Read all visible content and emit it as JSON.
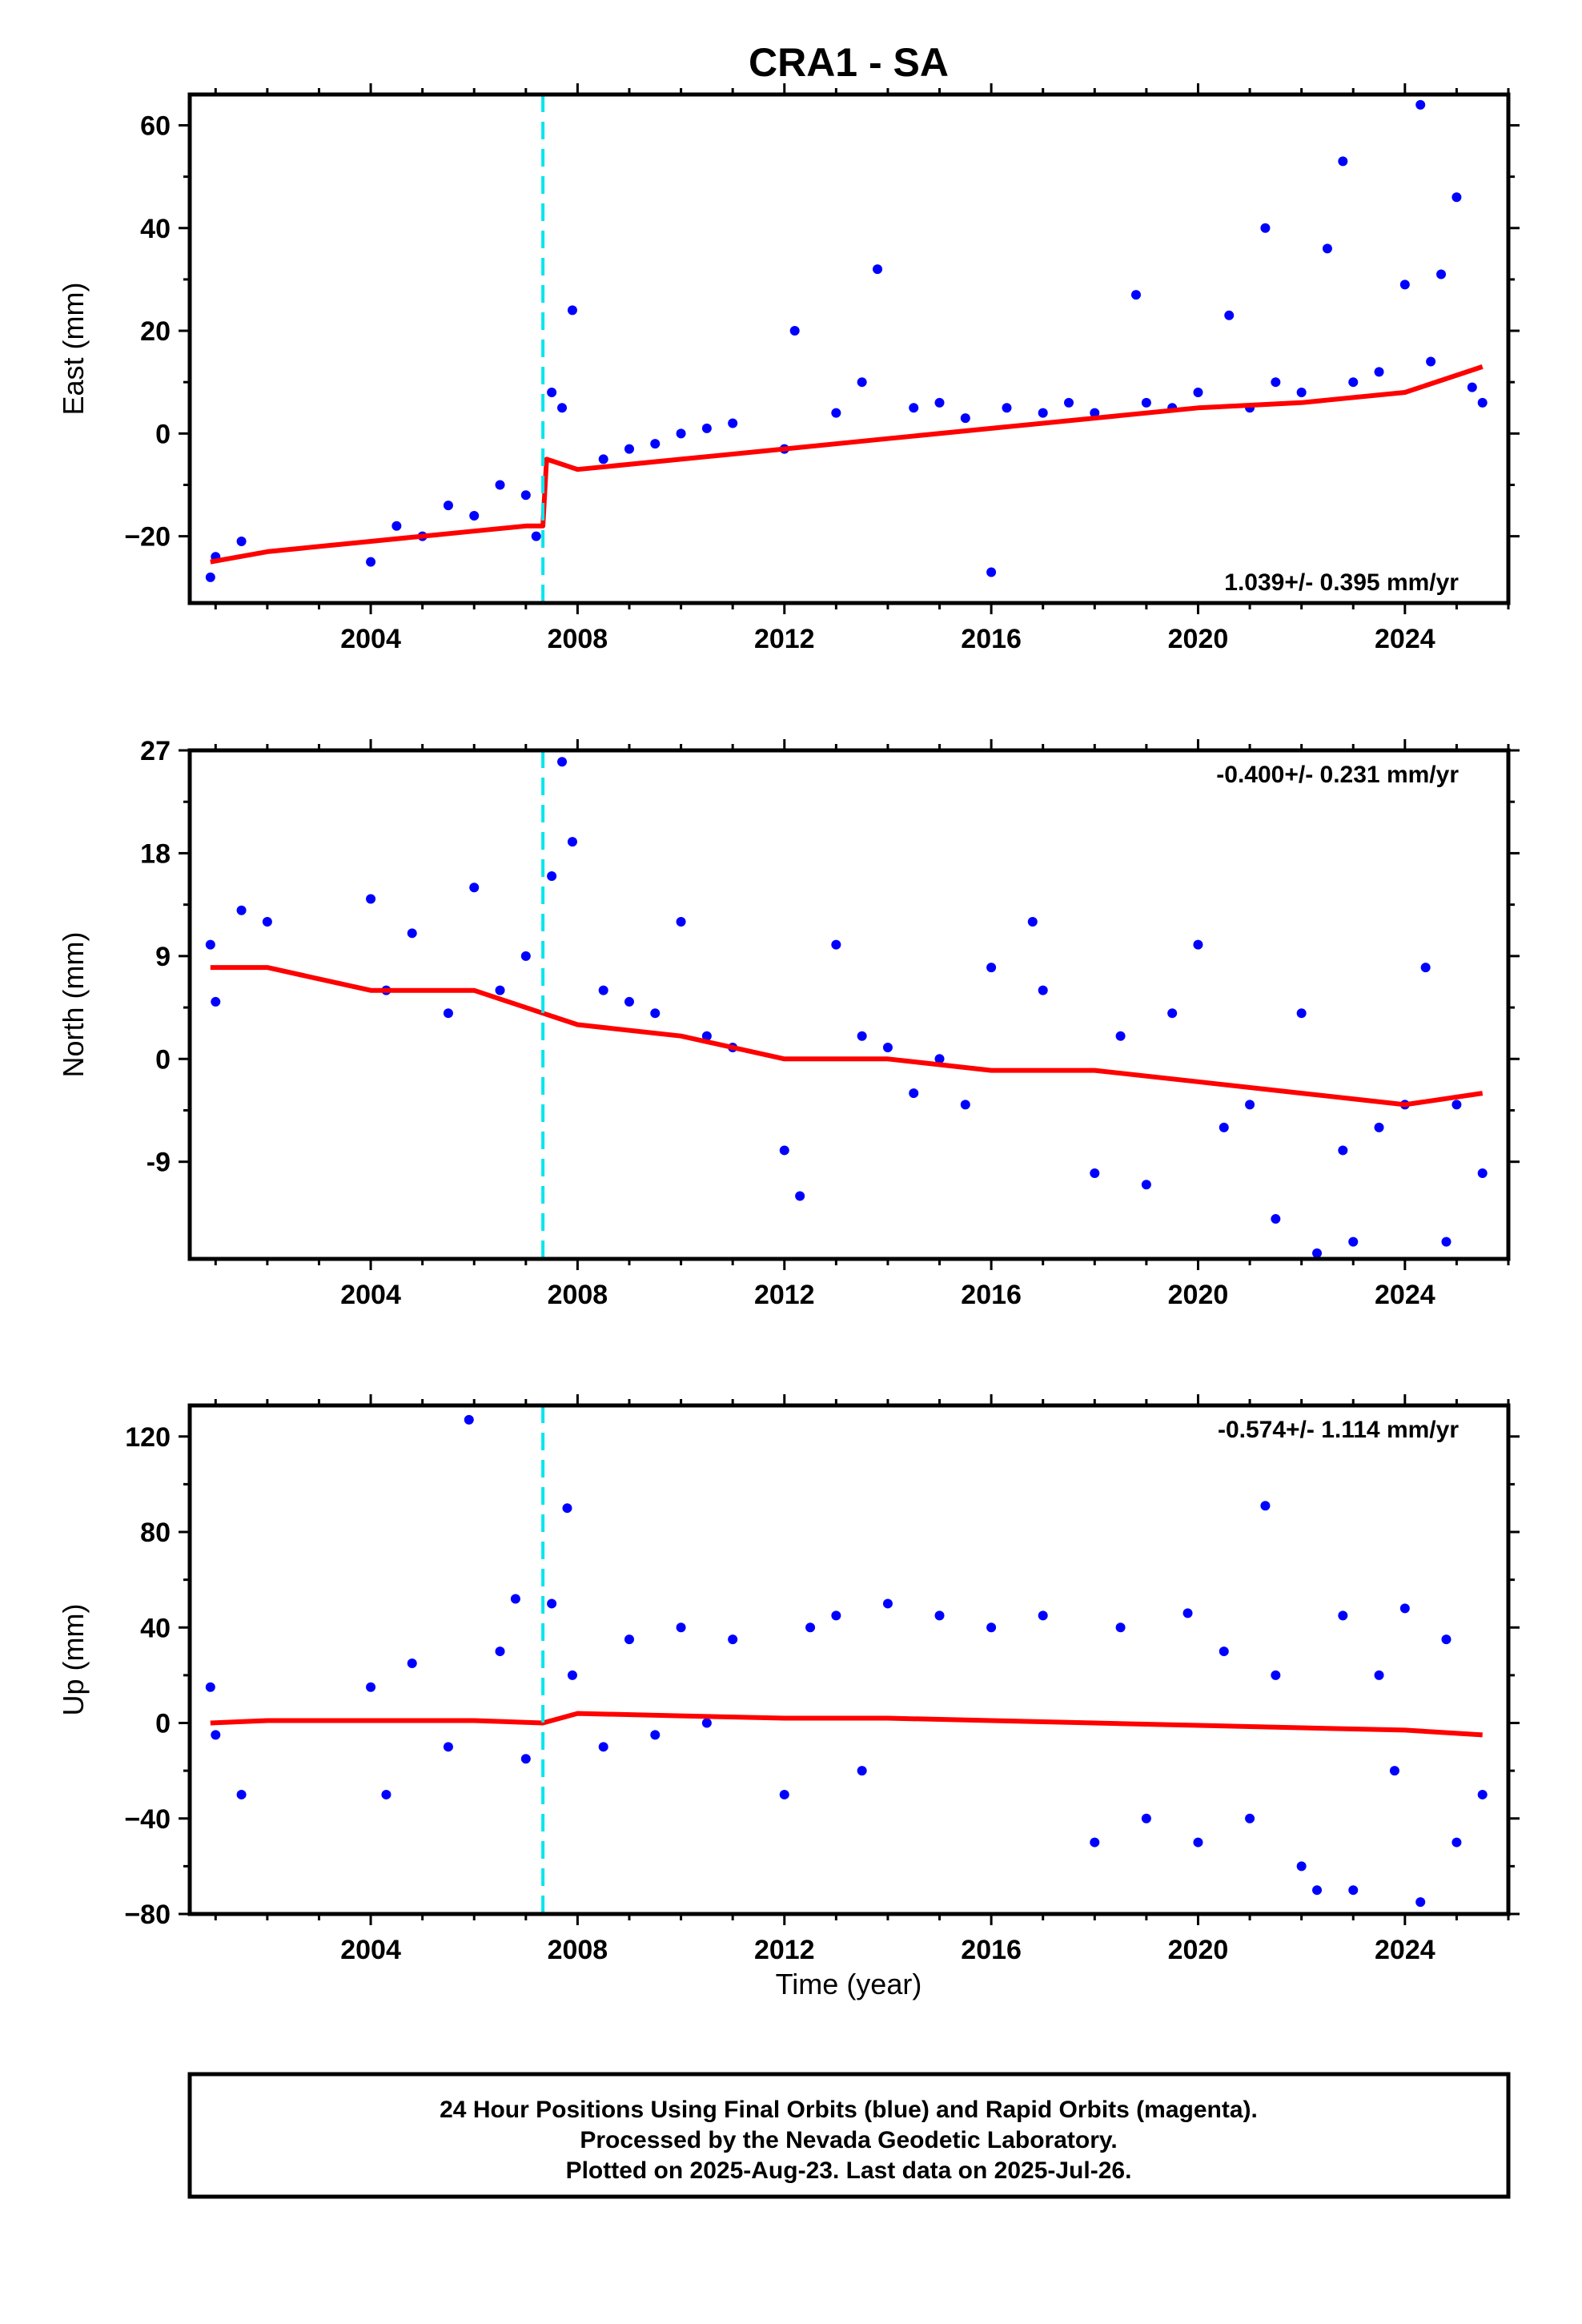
{
  "title": "CRA1 - SA",
  "x_axis_label": "Time (year)",
  "caption": [
    "24 Hour Positions Using Final Orbits (blue) and Rapid Orbits (magenta).",
    "Processed by the Nevada Geodetic Laboratory.",
    "Plotted on 2025-Aug-23. Last data on 2025-Jul-26."
  ],
  "colors": {
    "final_orbits": "#0000ff",
    "model": "#ff0000",
    "offset_line": "#00e5ee",
    "frame": "#000000"
  },
  "chart_data": [
    {
      "type": "scatter",
      "component": "east",
      "ylabel": "East (mm)",
      "xlim": [
        2000.5,
        2026.0
      ],
      "ylim": [
        -33,
        66
      ],
      "xticks": [
        2004,
        2008,
        2012,
        2016,
        2020,
        2024
      ],
      "yticks": [
        -20,
        0,
        20,
        40,
        60
      ],
      "yticklabels": [
        "−20",
        "0",
        "20",
        "40",
        "60"
      ],
      "rate_label": "1.039+/- 0.395 mm/yr",
      "offset_epoch": 2007.33,
      "series": [
        {
          "kind": "points",
          "x": [
            2000.9,
            2001.0,
            2001.5,
            2004.0,
            2004.5,
            2005.0,
            2005.5,
            2006.0,
            2006.5,
            2007.0,
            2007.2,
            2007.5,
            2007.7,
            2007.9,
            2008.5,
            2009.0,
            2009.5,
            2010.0,
            2010.5,
            2011.0,
            2012.0,
            2012.2,
            2013.0,
            2013.5,
            2013.8,
            2014.5,
            2015.0,
            2015.5,
            2016.0,
            2016.3,
            2017.0,
            2017.5,
            2018.0,
            2018.8,
            2019.0,
            2019.5,
            2020.0,
            2020.6,
            2021.0,
            2021.3,
            2021.5,
            2022.0,
            2022.5,
            2022.8,
            2023.0,
            2023.5,
            2024.0,
            2024.3,
            2024.5,
            2024.7,
            2025.0,
            2025.3,
            2025.5
          ],
          "y": [
            -28,
            -24,
            -21,
            -25,
            -18,
            -20,
            -14,
            -16,
            -10,
            -12,
            -20,
            8,
            5,
            24,
            -5,
            -3,
            -2,
            0,
            1,
            2,
            -3,
            20,
            4,
            10,
            32,
            5,
            6,
            3,
            -27,
            5,
            4,
            6,
            4,
            27,
            6,
            5,
            8,
            23,
            5,
            40,
            10,
            8,
            36,
            53,
            10,
            12,
            29,
            64,
            14,
            31,
            46,
            9,
            6
          ]
        },
        {
          "kind": "model",
          "x": [
            2000.9,
            2002.0,
            2003.0,
            2004.0,
            2005.0,
            2006.0,
            2007.0,
            2007.33,
            2007.4,
            2008.0,
            2010.0,
            2012.0,
            2014.0,
            2016.0,
            2018.0,
            2020.0,
            2022.0,
            2024.0,
            2025.5
          ],
          "y": [
            -25,
            -23,
            -22,
            -21,
            -20,
            -19,
            -18,
            -18,
            -5,
            -7,
            -5,
            -3,
            -1,
            1,
            3,
            5,
            6,
            8,
            13
          ]
        }
      ]
    },
    {
      "type": "scatter",
      "component": "north",
      "ylabel": "North (mm)",
      "xlim": [
        2000.5,
        2026.0
      ],
      "ylim": [
        -17.5,
        27
      ],
      "xticks": [
        2004,
        2008,
        2012,
        2016,
        2020,
        2024
      ],
      "yticks": [
        -9,
        0,
        9,
        18,
        27
      ],
      "yticklabels": [
        "-9",
        "0",
        "9",
        "18",
        "27"
      ],
      "rate_label": "-0.400+/- 0.231 mm/yr",
      "offset_epoch": 2007.33,
      "series": [
        {
          "kind": "points",
          "x": [
            2000.9,
            2001.0,
            2001.5,
            2002.0,
            2004.0,
            2004.3,
            2004.8,
            2005.5,
            2006.0,
            2006.5,
            2007.0,
            2007.5,
            2007.7,
            2007.9,
            2008.5,
            2009.0,
            2009.5,
            2010.0,
            2010.5,
            2011.0,
            2012.0,
            2012.3,
            2013.0,
            2013.5,
            2014.0,
            2014.5,
            2015.0,
            2015.5,
            2016.0,
            2016.8,
            2017.0,
            2018.0,
            2018.5,
            2019.0,
            2019.5,
            2020.0,
            2020.5,
            2021.0,
            2021.5,
            2022.0,
            2022.3,
            2022.8,
            2023.0,
            2023.5,
            2024.0,
            2024.4,
            2024.8,
            2025.0,
            2025.5
          ],
          "y": [
            10,
            5,
            13,
            12,
            14,
            6,
            11,
            4,
            15,
            6,
            9,
            16,
            26,
            19,
            6,
            5,
            4,
            12,
            2,
            1,
            -8,
            -12,
            10,
            2,
            1,
            -3,
            0,
            -4,
            8,
            12,
            6,
            -10,
            2,
            -11,
            4,
            10,
            -6,
            -4,
            -14,
            4,
            -17,
            -8,
            -16,
            -6,
            -4,
            8,
            -16,
            -4,
            -10
          ]
        },
        {
          "kind": "model",
          "x": [
            2000.9,
            2002.0,
            2004.0,
            2006.0,
            2007.33,
            2008.0,
            2010.0,
            2012.0,
            2014.0,
            2016.0,
            2018.0,
            2020.0,
            2022.0,
            2024.0,
            2025.5
          ],
          "y": [
            8,
            8,
            6,
            6,
            4,
            3,
            2,
            0,
            0,
            -1,
            -1,
            -2,
            -3,
            -4,
            -3
          ]
        }
      ]
    },
    {
      "type": "scatter",
      "component": "up",
      "ylabel": "Up (mm)",
      "xlim": [
        2000.5,
        2026.0
      ],
      "ylim": [
        -80,
        133
      ],
      "xticks": [
        2004,
        2008,
        2012,
        2016,
        2020,
        2024
      ],
      "yticks": [
        -80,
        -40,
        0,
        40,
        80,
        120
      ],
      "yticklabels": [
        "−80",
        "−40",
        "0",
        "40",
        "80",
        "120"
      ],
      "rate_label": "-0.574+/- 1.114 mm/yr",
      "offset_epoch": 2007.33,
      "series": [
        {
          "kind": "points",
          "x": [
            2000.9,
            2001.0,
            2001.5,
            2004.0,
            2004.3,
            2004.8,
            2005.5,
            2005.9,
            2006.5,
            2006.8,
            2007.0,
            2007.5,
            2007.8,
            2007.9,
            2008.5,
            2009.0,
            2009.5,
            2010.0,
            2010.5,
            2011.0,
            2012.0,
            2012.5,
            2013.0,
            2013.5,
            2014.0,
            2015.0,
            2016.0,
            2017.0,
            2018.0,
            2018.5,
            2019.0,
            2019.8,
            2020.0,
            2020.5,
            2021.0,
            2021.3,
            2021.5,
            2022.0,
            2022.3,
            2022.8,
            2023.0,
            2023.5,
            2023.8,
            2024.0,
            2024.3,
            2024.8,
            2025.0,
            2025.5
          ],
          "y": [
            15,
            -5,
            -30,
            15,
            -30,
            25,
            -10,
            127,
            30,
            52,
            -15,
            50,
            90,
            20,
            -10,
            35,
            -5,
            40,
            0,
            35,
            -30,
            40,
            45,
            -20,
            50,
            45,
            40,
            45,
            -50,
            40,
            -40,
            46,
            -50,
            30,
            -40,
            91,
            20,
            -60,
            -70,
            45,
            -70,
            20,
            -20,
            48,
            -75,
            35,
            -50,
            -30
          ]
        },
        {
          "kind": "model",
          "x": [
            2000.9,
            2002.0,
            2004.0,
            2006.0,
            2007.33,
            2008.0,
            2010.0,
            2012.0,
            2014.0,
            2016.0,
            2018.0,
            2020.0,
            2022.0,
            2024.0,
            2025.5
          ],
          "y": [
            0,
            1,
            1,
            1,
            0,
            4,
            3,
            2,
            2,
            1,
            0,
            -1,
            -2,
            -3,
            -5
          ]
        }
      ]
    }
  ]
}
